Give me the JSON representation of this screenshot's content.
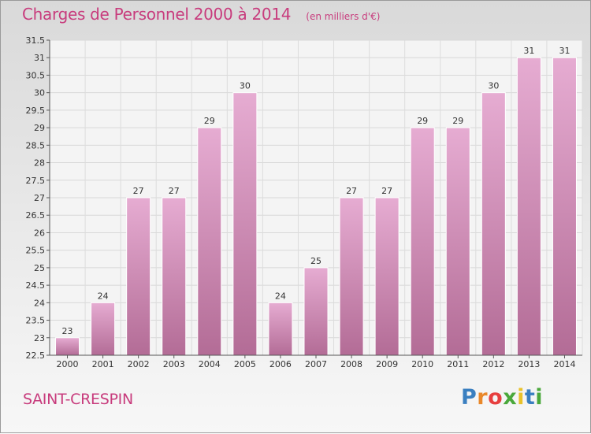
{
  "title": "Charges de Personnel 2000 à 2014",
  "subtitle": "(en milliers d'€)",
  "commune": "SAINT-CRESPIN",
  "logo": {
    "text": "Proxiti",
    "colors": [
      "#3a7fc0",
      "#e9882a",
      "#e73f3f",
      "#4aa83b",
      "#e9c22a",
      "#3a7fc0",
      "#4aa83b"
    ]
  },
  "chart_data": {
    "type": "bar",
    "categories": [
      "2000",
      "2001",
      "2002",
      "2003",
      "2004",
      "2005",
      "2006",
      "2007",
      "2008",
      "2009",
      "2010",
      "2011",
      "2012",
      "2013",
      "2014"
    ],
    "values": [
      23,
      24,
      27,
      27,
      29,
      30,
      24,
      25,
      27,
      27,
      29,
      29,
      30,
      31,
      31
    ],
    "ylim": [
      22.5,
      31.5
    ],
    "yticks": [
      22.5,
      23,
      23.5,
      24,
      24.5,
      25,
      25.5,
      26,
      26.5,
      27,
      27.5,
      28,
      28.5,
      29,
      29.5,
      30,
      30.5,
      31,
      31.5
    ],
    "bar_color": "#e0a0c8",
    "grid": true
  }
}
